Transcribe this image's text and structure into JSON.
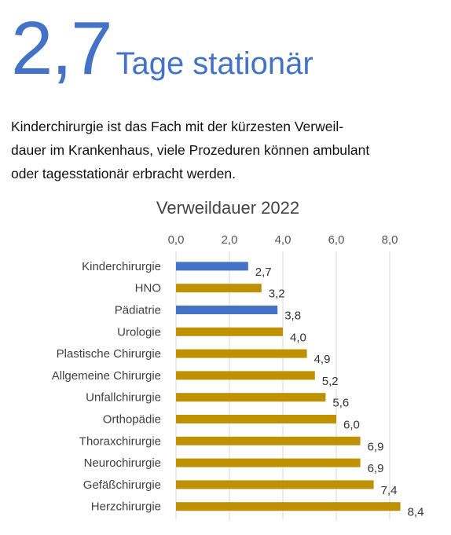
{
  "headline": {
    "number": "2,7",
    "label": "Tage stationär"
  },
  "intro": [
    "Kinderchirurgie ist das Fach mit der kürzesten Verweil-",
    "dauer im Krankenhaus, viele Prozeduren können ambulant",
    "oder tagesstationär erbracht werden."
  ],
  "colors": {
    "highlight": "#4472c4",
    "default": "#bf9000",
    "grid": "#d9d9d9"
  },
  "chart_data": {
    "type": "bar",
    "orientation": "horizontal",
    "title": "Verweildauer 2022",
    "xlim": [
      0,
      9
    ],
    "grid": true,
    "axis_position": "top",
    "ticks": [
      0,
      2,
      4,
      6,
      8
    ],
    "tick_labels": [
      "0,0",
      "2,0",
      "4,0",
      "6,0",
      "8,0"
    ],
    "categories": [
      "Kinderchirurgie",
      "HNO",
      "Pädiatrie",
      "Urologie",
      "Plastische Chirurgie",
      "Allgemeine Chirurgie",
      "Unfallchirurgie",
      "Orthopädie",
      "Thoraxchirurgie",
      "Neurochirurgie",
      "Gefäßchirurgie",
      "Herzchirurgie"
    ],
    "values": [
      2.7,
      3.2,
      3.8,
      4.0,
      4.9,
      5.2,
      5.6,
      6.0,
      6.9,
      6.9,
      7.4,
      8.4
    ],
    "value_labels": [
      "2,7",
      "3,2",
      "3,8",
      "4,0",
      "4,9",
      "5,2",
      "5,6",
      "6,0",
      "6,9",
      "6,9",
      "7,4",
      "8,4"
    ],
    "bar_colors": [
      "highlight",
      "default",
      "highlight",
      "default",
      "default",
      "default",
      "default",
      "default",
      "default",
      "default",
      "default",
      "default"
    ]
  }
}
